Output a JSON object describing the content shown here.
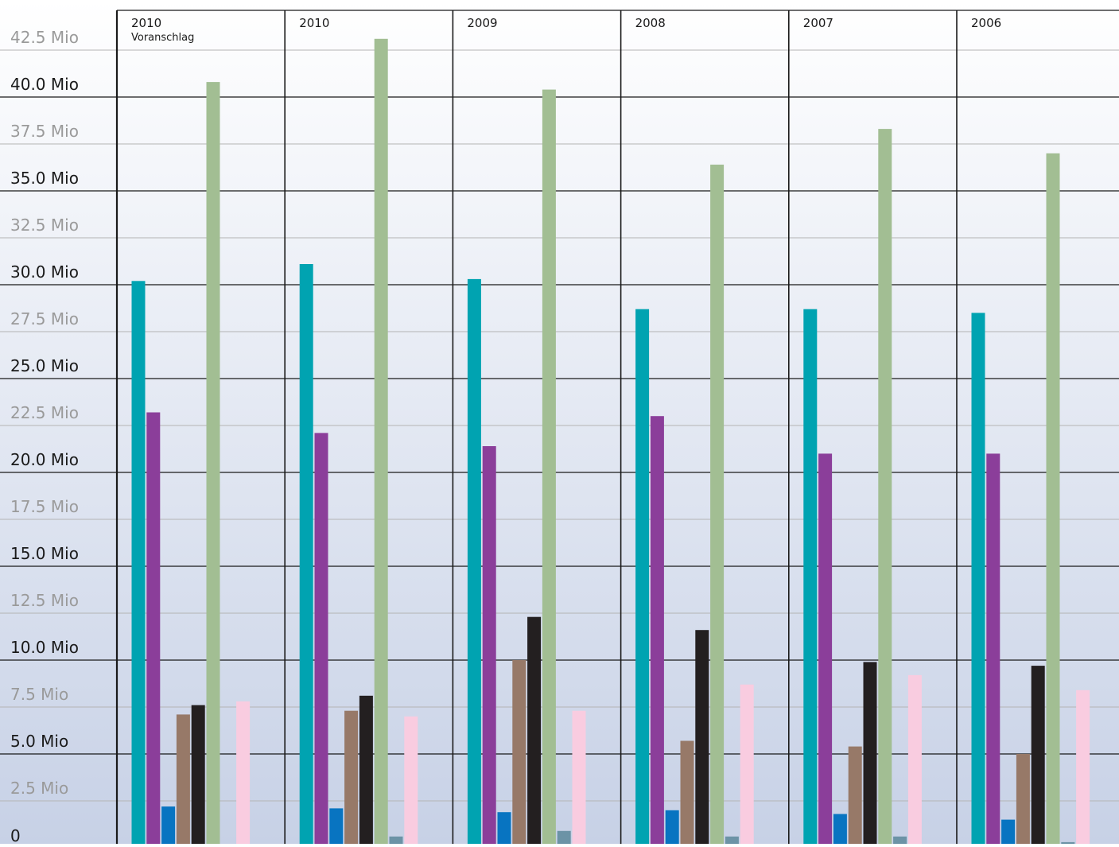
{
  "chart_data": {
    "type": "bar",
    "categories": [
      "2010",
      "2010",
      "2009",
      "2008",
      "2007",
      "2006"
    ],
    "category_sublabels": [
      "Voranschlag",
      "",
      "",
      "",
      "",
      ""
    ],
    "ylim": [
      0,
      43
    ],
    "y_ticks": [
      {
        "value": 0,
        "label": "0",
        "major": true
      },
      {
        "value": 2.5,
        "label": "2.5 Mio",
        "major": false
      },
      {
        "value": 5,
        "label": "5.0 Mio",
        "major": true
      },
      {
        "value": 7.5,
        "label": "7.5 Mio",
        "major": false
      },
      {
        "value": 10,
        "label": "10.0 Mio",
        "major": true
      },
      {
        "value": 12.5,
        "label": "12.5 Mio",
        "major": false
      },
      {
        "value": 15,
        "label": "15.0 Mio",
        "major": true
      },
      {
        "value": 17.5,
        "label": "17.5 Mio",
        "major": false
      },
      {
        "value": 20,
        "label": "20.0 Mio",
        "major": true
      },
      {
        "value": 22.5,
        "label": "22.5 Mio",
        "major": false
      },
      {
        "value": 25,
        "label": "25.0 Mio",
        "major": true
      },
      {
        "value": 27.5,
        "label": "27.5 Mio",
        "major": false
      },
      {
        "value": 30,
        "label": "30.0 Mio",
        "major": true
      },
      {
        "value": 32.5,
        "label": "32.5 Mio",
        "major": false
      },
      {
        "value": 35,
        "label": "35.0 Mio",
        "major": true
      },
      {
        "value": 37.5,
        "label": "37.5 Mio",
        "major": false
      },
      {
        "value": 40,
        "label": "40.0 Mio",
        "major": true
      },
      {
        "value": 42.5,
        "label": "42.5 Mio",
        "major": false
      }
    ],
    "grid": true,
    "legend": "none",
    "series": [
      {
        "color": "#00a3b1",
        "values": [
          30.2,
          31.1,
          30.3,
          28.7,
          28.7,
          28.5
        ]
      },
      {
        "color": "#8b3e9a",
        "values": [
          23.2,
          22.1,
          21.4,
          23.0,
          21.0,
          21.0
        ]
      },
      {
        "color": "#0874c1",
        "values": [
          2.2,
          2.1,
          1.9,
          2.0,
          1.8,
          1.5
        ]
      },
      {
        "color": "#977968",
        "values": [
          7.1,
          7.3,
          10.0,
          5.7,
          5.4,
          5.0
        ]
      },
      {
        "color": "#231f20",
        "values": [
          7.6,
          8.1,
          12.3,
          11.6,
          9.9,
          9.7
        ]
      },
      {
        "color": "#a2be93",
        "values": [
          40.8,
          43.1,
          40.4,
          36.4,
          38.3,
          37.0
        ]
      },
      {
        "color": "#6c93a6",
        "values": [
          0.0,
          0.6,
          0.9,
          0.6,
          0.6,
          0.3
        ]
      },
      {
        "color": "#f9cce0",
        "values": [
          7.8,
          7.0,
          7.3,
          8.7,
          9.2,
          8.4
        ]
      }
    ]
  },
  "colors": {
    "major_tick_text": "#1a1a1a",
    "minor_tick_text": "#9a9a9a",
    "grid_major": "#1a1a1a",
    "grid_minor": "#b4b4b4",
    "background_top": "#ffffff",
    "background_bottom": "#c7d1e6"
  }
}
